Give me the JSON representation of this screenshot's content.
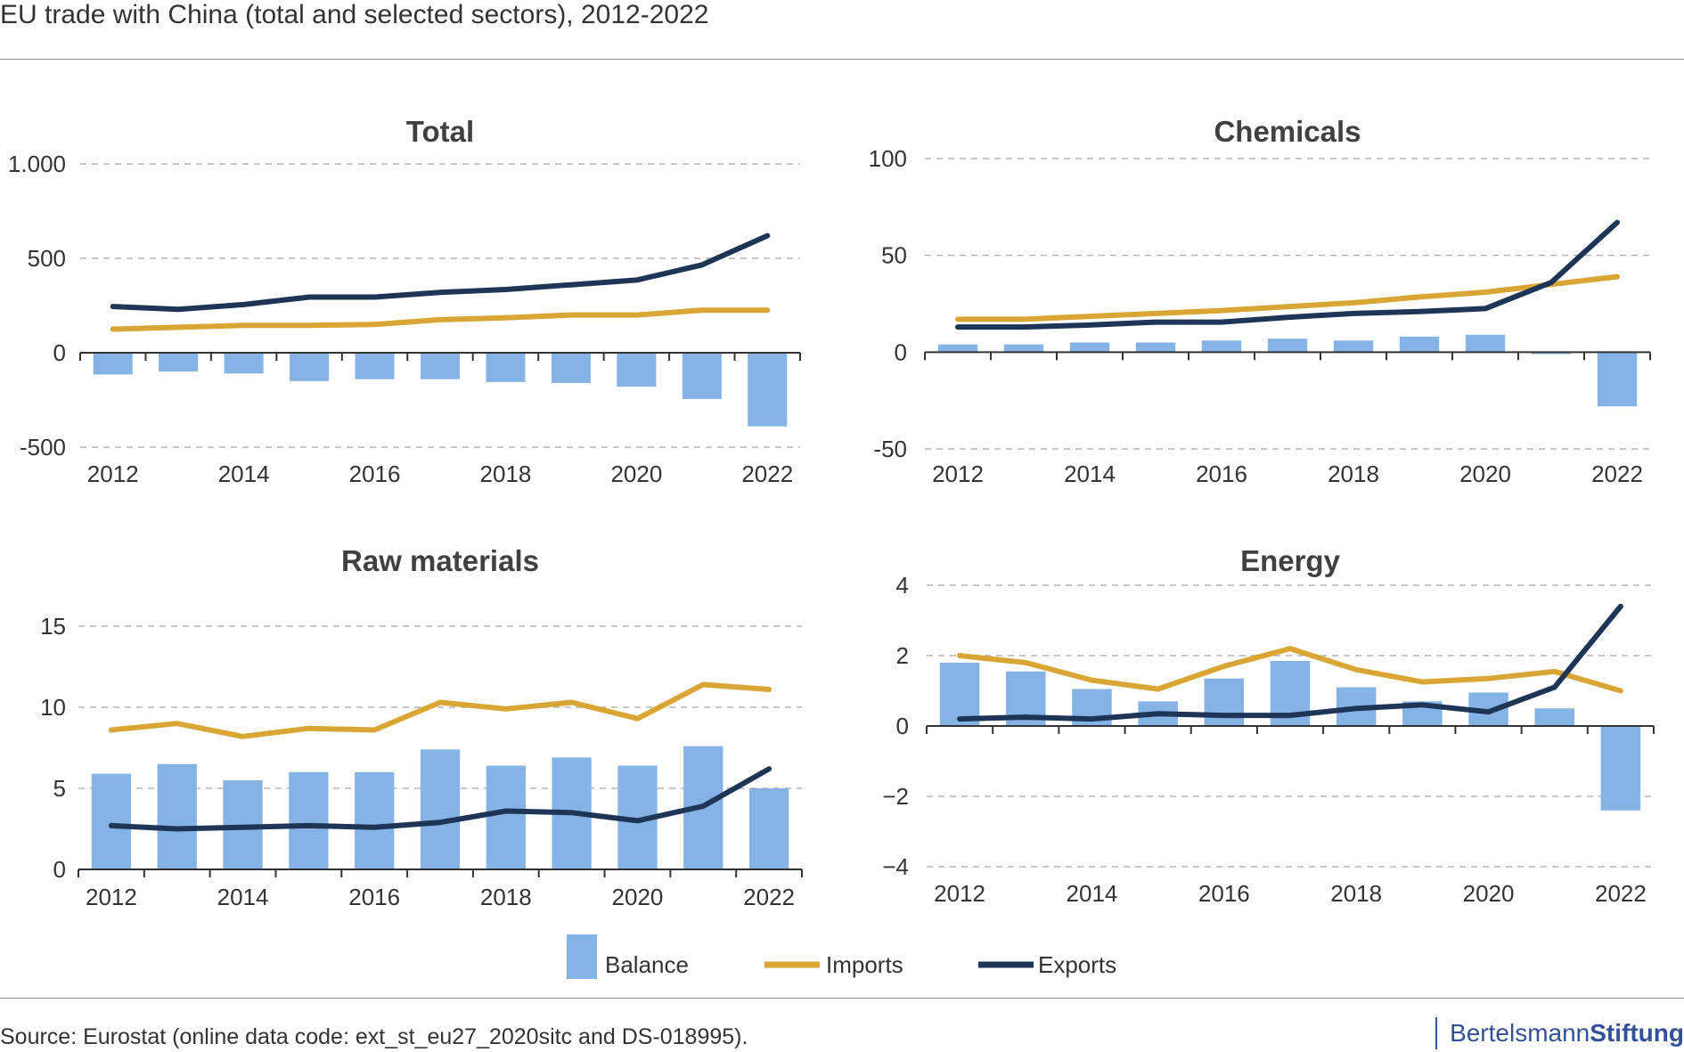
{
  "title": "EU trade with China (total and selected sectors), 2012-2022",
  "source": "Source: Eurostat (online data code: ext_st_eu27_2020sitc and DS-018995).",
  "logo": {
    "part1": "Bertelsmann",
    "part2": "Stiftung"
  },
  "colors": {
    "balance": "#85b3e6",
    "imports": "#d9a534",
    "exports": "#1f3557",
    "grid": "#b3b3b3",
    "axis": "#333333"
  },
  "legend": [
    {
      "key": "balance",
      "label": "Balance",
      "kind": "bar"
    },
    {
      "key": "imports",
      "label": "Imports",
      "kind": "line"
    },
    {
      "key": "exports",
      "label": "Exports",
      "kind": "line"
    }
  ],
  "chart_data": [
    {
      "type": "bar+line",
      "title": "Total",
      "years": [
        2012,
        2013,
        2014,
        2015,
        2016,
        2017,
        2018,
        2019,
        2020,
        2021,
        2022
      ],
      "x_tick_labels": [
        "2012",
        "2014",
        "2016",
        "2018",
        "2020",
        "2022"
      ],
      "y_ticks": [
        1000,
        500,
        0,
        -500
      ],
      "y_tick_labels": [
        "1.000",
        "500",
        "0",
        "-500"
      ],
      "ylim": [
        -500,
        1000
      ],
      "grid": true,
      "series": [
        {
          "name": "Balance",
          "key": "balance",
          "values": [
            -115,
            -100,
            -110,
            -150,
            -140,
            -140,
            -155,
            -160,
            -180,
            -245,
            -390
          ]
        },
        {
          "name": "Imports",
          "key": "imports",
          "values": [
            125,
            135,
            145,
            145,
            150,
            175,
            185,
            200,
            200,
            225,
            225
          ]
        },
        {
          "name": "Exports",
          "key": "exports",
          "values": [
            245,
            230,
            255,
            295,
            295,
            320,
            335,
            360,
            385,
            465,
            620
          ]
        }
      ]
    },
    {
      "type": "bar+line",
      "title": "Chemicals",
      "years": [
        2012,
        2013,
        2014,
        2015,
        2016,
        2017,
        2018,
        2019,
        2020,
        2021,
        2022
      ],
      "x_tick_labels": [
        "2012",
        "2014",
        "2016",
        "2018",
        "2020",
        "2022"
      ],
      "y_ticks": [
        100,
        50,
        0,
        -50
      ],
      "y_tick_labels": [
        "100",
        "50",
        "0",
        "-50"
      ],
      "ylim": [
        -50,
        100
      ],
      "grid": true,
      "series": [
        {
          "name": "Balance",
          "key": "balance",
          "values": [
            4,
            4,
            5,
            5,
            6,
            7,
            6,
            8,
            9,
            -1,
            -28
          ]
        },
        {
          "name": "Imports",
          "key": "imports",
          "values": [
            17,
            17,
            18.5,
            20,
            21.5,
            23.5,
            25.5,
            28.5,
            31,
            35,
            39
          ]
        },
        {
          "name": "Exports",
          "key": "exports",
          "values": [
            13,
            13,
            14,
            15.5,
            15.5,
            18,
            20,
            21,
            22.5,
            36,
            67
          ]
        }
      ]
    },
    {
      "type": "bar+line",
      "title": "Raw materials",
      "years": [
        2012,
        2013,
        2014,
        2015,
        2016,
        2017,
        2018,
        2019,
        2020,
        2021,
        2022
      ],
      "x_tick_labels": [
        "2012",
        "2014",
        "2016",
        "2018",
        "2020",
        "2022"
      ],
      "y_ticks": [
        15,
        10,
        5,
        0
      ],
      "y_tick_labels": [
        "15",
        "10",
        "5",
        "0"
      ],
      "ylim": [
        0,
        15
      ],
      "grid": true,
      "series": [
        {
          "name": "Balance",
          "key": "balance",
          "values": [
            5.9,
            6.5,
            5.5,
            6.0,
            6.0,
            7.4,
            6.4,
            6.9,
            6.4,
            7.6,
            5.0
          ]
        },
        {
          "name": "Imports",
          "key": "imports",
          "values": [
            8.6,
            9.0,
            8.2,
            8.7,
            8.6,
            10.3,
            9.9,
            10.3,
            9.3,
            11.4,
            11.1
          ]
        },
        {
          "name": "Exports",
          "key": "exports",
          "values": [
            2.7,
            2.5,
            2.6,
            2.7,
            2.6,
            2.9,
            3.6,
            3.5,
            3.0,
            3.9,
            6.2
          ]
        }
      ]
    },
    {
      "type": "bar+line",
      "title": "Energy",
      "years": [
        2012,
        2013,
        2014,
        2015,
        2016,
        2017,
        2018,
        2019,
        2020,
        2021,
        2022
      ],
      "x_tick_labels": [
        "2012",
        "2014",
        "2016",
        "2018",
        "2020",
        "2022"
      ],
      "y_ticks": [
        4,
        2,
        0,
        -2,
        -4
      ],
      "y_tick_labels": [
        "4",
        "2",
        "0",
        "−2",
        "−4"
      ],
      "ylim": [
        -4,
        4
      ],
      "grid": true,
      "series": [
        {
          "name": "Balance",
          "key": "balance",
          "values": [
            1.8,
            1.55,
            1.05,
            0.7,
            1.35,
            1.85,
            1.1,
            0.7,
            0.95,
            0.5,
            -2.4
          ]
        },
        {
          "name": "Imports",
          "key": "imports",
          "values": [
            2.0,
            1.8,
            1.3,
            1.05,
            1.7,
            2.2,
            1.6,
            1.25,
            1.35,
            1.55,
            1.0
          ]
        },
        {
          "name": "Exports",
          "key": "exports",
          "values": [
            0.2,
            0.25,
            0.2,
            0.35,
            0.3,
            0.3,
            0.5,
            0.6,
            0.4,
            1.1,
            3.4
          ]
        }
      ]
    }
  ]
}
